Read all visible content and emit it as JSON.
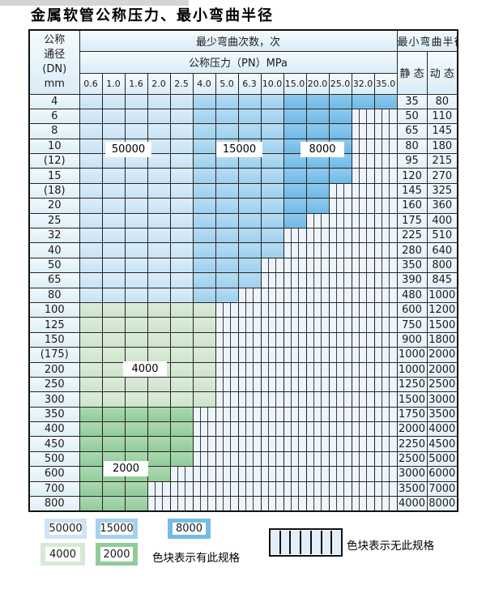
{
  "title": "金属软管公称压力、最小弯曲半径",
  "table": {
    "dn_header_lines": [
      "公称",
      "通径",
      "(DN)",
      "mm"
    ],
    "cycles_header": "最少弯曲次数，次",
    "pressure_header": "公称压力（PN）MPa",
    "radius_header": "最小弯曲半径",
    "static_header": "静 态",
    "dynamic_header": "动 态",
    "pressure_columns": [
      "0.6",
      "1.0",
      "1.6",
      "2.0",
      "2.5",
      "4.0",
      "5.0",
      "6.3",
      "10.0",
      "15.0",
      "20.0",
      "25.0",
      "32.0",
      "35.0"
    ],
    "rows": [
      {
        "dn": "4",
        "band": "blue",
        "last": 13,
        "static": "35",
        "dynamic": "80"
      },
      {
        "dn": "6",
        "band": "blue",
        "last": 11,
        "static": "50",
        "dynamic": "110"
      },
      {
        "dn": "8",
        "band": "blue",
        "last": 11,
        "static": "65",
        "dynamic": "145"
      },
      {
        "dn": "10",
        "band": "blue",
        "last": 11,
        "static": "80",
        "dynamic": "180"
      },
      {
        "dn": "(12)",
        "band": "blue",
        "last": 11,
        "static": "95",
        "dynamic": "215"
      },
      {
        "dn": "15",
        "band": "blue",
        "last": 11,
        "static": "120",
        "dynamic": "270"
      },
      {
        "dn": "(18)",
        "band": "blue",
        "last": 10,
        "static": "145",
        "dynamic": "325"
      },
      {
        "dn": "20",
        "band": "blue",
        "last": 10,
        "static": "160",
        "dynamic": "360"
      },
      {
        "dn": "25",
        "band": "blue",
        "last": 9,
        "static": "175",
        "dynamic": "400"
      },
      {
        "dn": "32",
        "band": "blue",
        "last": 8,
        "static": "225",
        "dynamic": "510"
      },
      {
        "dn": "40",
        "band": "blue",
        "last": 8,
        "static": "280",
        "dynamic": "640"
      },
      {
        "dn": "50",
        "band": "blue",
        "last": 7,
        "static": "350",
        "dynamic": "800"
      },
      {
        "dn": "65",
        "band": "blue",
        "last": 7,
        "static": "390",
        "dynamic": "845"
      },
      {
        "dn": "80",
        "band": "blue",
        "last": 6,
        "static": "480",
        "dynamic": "1000"
      },
      {
        "dn": "100",
        "band": "g4",
        "last": 5,
        "static": "600",
        "dynamic": "1200"
      },
      {
        "dn": "125",
        "band": "g4",
        "last": 5,
        "static": "750",
        "dynamic": "1500"
      },
      {
        "dn": "150",
        "band": "g4",
        "last": 5,
        "static": "900",
        "dynamic": "1800"
      },
      {
        "dn": "(175)",
        "band": "g4",
        "last": 5,
        "static": "1000",
        "dynamic": "2000"
      },
      {
        "dn": "200",
        "band": "g4",
        "last": 5,
        "static": "1000",
        "dynamic": "2000"
      },
      {
        "dn": "250",
        "band": "g4",
        "last": 5,
        "static": "1250",
        "dynamic": "2500"
      },
      {
        "dn": "300",
        "band": "g4",
        "last": 5,
        "static": "1500",
        "dynamic": "3000"
      },
      {
        "dn": "350",
        "band": "g2",
        "last": 4,
        "static": "1750",
        "dynamic": "3500"
      },
      {
        "dn": "400",
        "band": "g2",
        "last": 4,
        "static": "2000",
        "dynamic": "4000"
      },
      {
        "dn": "450",
        "band": "g2",
        "last": 4,
        "static": "2250",
        "dynamic": "4500"
      },
      {
        "dn": "500",
        "band": "g2",
        "last": 4,
        "static": "2500",
        "dynamic": "5000"
      },
      {
        "dn": "600",
        "band": "g2",
        "last": 3,
        "static": "3000",
        "dynamic": "6000"
      },
      {
        "dn": "700",
        "band": "g2",
        "last": 2,
        "static": "3500",
        "dynamic": "7000"
      },
      {
        "dn": "800",
        "band": "g2",
        "last": 2,
        "static": "4000",
        "dynamic": "8000"
      }
    ],
    "cycle_bands": {
      "blue_by_pressure": {
        "50000": [
          "0.6",
          "1.0",
          "1.6",
          "2.0",
          "2.5"
        ],
        "15000": [
          "4.0",
          "5.0",
          "6.3",
          "10.0"
        ],
        "8000": [
          "15.0",
          "20.0",
          "25.0",
          "32.0",
          "35.0"
        ]
      },
      "green_by_dn": {
        "4000": [
          "100",
          "125",
          "150",
          "(175)",
          "200",
          "250",
          "300"
        ],
        "2000": [
          "350",
          "400",
          "450",
          "500",
          "600",
          "700",
          "800"
        ]
      }
    }
  },
  "cycle_labels": {
    "l50000": "50000",
    "l15000": "15000",
    "l8000": "8000",
    "l4000": "4000",
    "l2000": "2000"
  },
  "legend": {
    "swatches": [
      {
        "label": "50000",
        "color": "#cde4f6"
      },
      {
        "label": "15000",
        "color": "#a5d3ef"
      },
      {
        "label": "8000",
        "color": "#74bce6"
      },
      {
        "label": "4000",
        "color": "#d7e9d5"
      },
      {
        "label": "2000",
        "color": "#90cc9a"
      }
    ],
    "has_spec_text": "色块表示有此规格",
    "no_spec_text": "色块表示无此规格"
  },
  "colors": {
    "cycles_50000": "#cde4f6",
    "cycles_15000": "#a5d3ef",
    "cycles_8000": "#74bce6",
    "cycles_4000": "#d7e9d5",
    "cycles_2000": "#90cc9a",
    "hatch_bg": "#edf4fb",
    "grid_line": "#242424"
  }
}
